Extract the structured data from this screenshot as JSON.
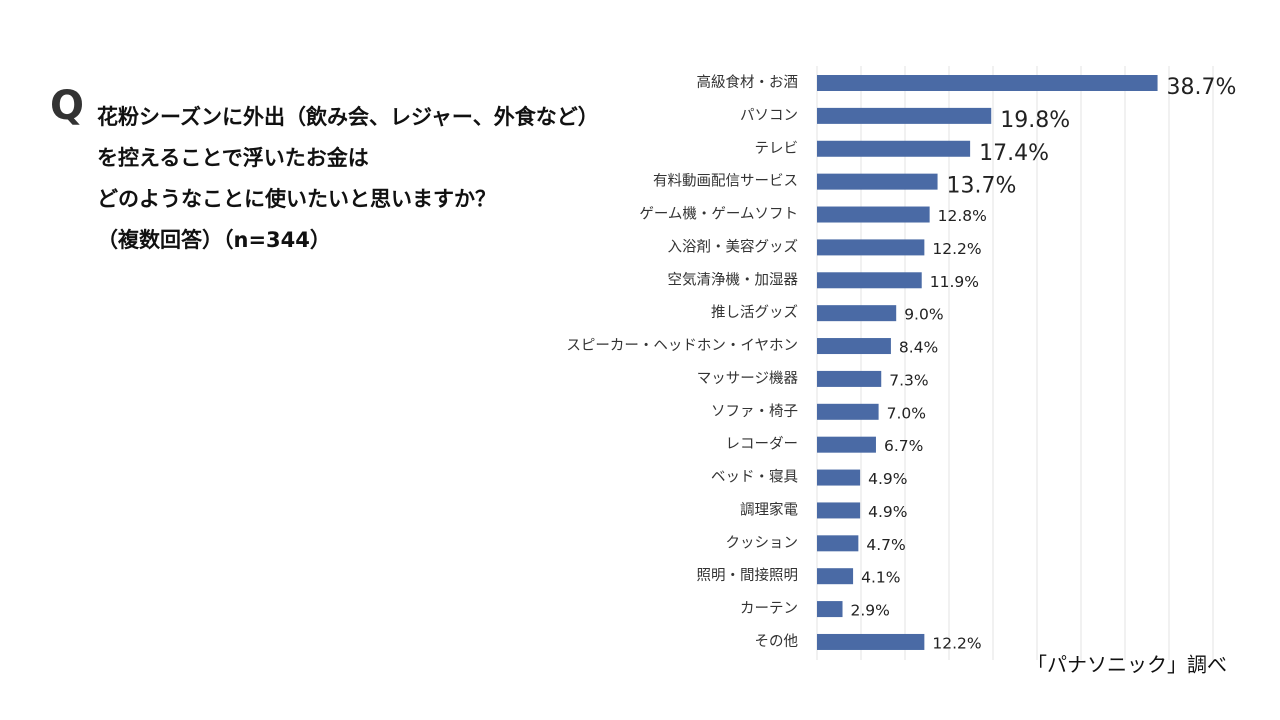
{
  "chart_data": {
    "type": "barh",
    "marker": "Q",
    "title_lines": [
      "花粉シーズンに外出（飲み会、レジャー、外食など）",
      "を控えることで浮いたお金は",
      "どのようなことに使いたいと思いますか？",
      "（複数回答）（n=344）"
    ],
    "source": "「パナソニック」調べ",
    "categories": [
      "高級食材・お酒",
      "パソコン",
      "テレビ",
      "有料動画配信サービス",
      "ゲーム機・ゲームソフト",
      "入浴剤・美容グッズ",
      "空気清浄機・加湿器",
      "推し活グッズ",
      "スピーカー・ヘッドホン・イヤホン",
      "マッサージ機器",
      "ソファ・椅子",
      "レコーダー",
      "ベッド・寝具",
      "調理家電",
      "クッション",
      "照明・間接照明",
      "カーテン",
      "その他"
    ],
    "values": [
      38.7,
      19.8,
      17.4,
      13.7,
      12.8,
      12.2,
      11.9,
      9.0,
      8.4,
      7.3,
      7.0,
      6.7,
      4.9,
      4.9,
      4.7,
      4.1,
      2.9,
      12.2
    ],
    "value_labels": [
      "38.7%",
      "19.8%",
      "17.4%",
      "13.7%",
      "12.8%",
      "12.2%",
      "11.9%",
      "9.0%",
      "8.4%",
      "7.3%",
      "7.0%",
      "6.7%",
      "4.9%",
      "4.9%",
      "4.7%",
      "4.1%",
      "2.9%",
      "12.2%"
    ],
    "color": "#4a6aa5",
    "xlim": [
      0,
      45
    ],
    "xticks": [
      0,
      5,
      10,
      15,
      20,
      25,
      30,
      35,
      40,
      45
    ],
    "grid": true
  }
}
